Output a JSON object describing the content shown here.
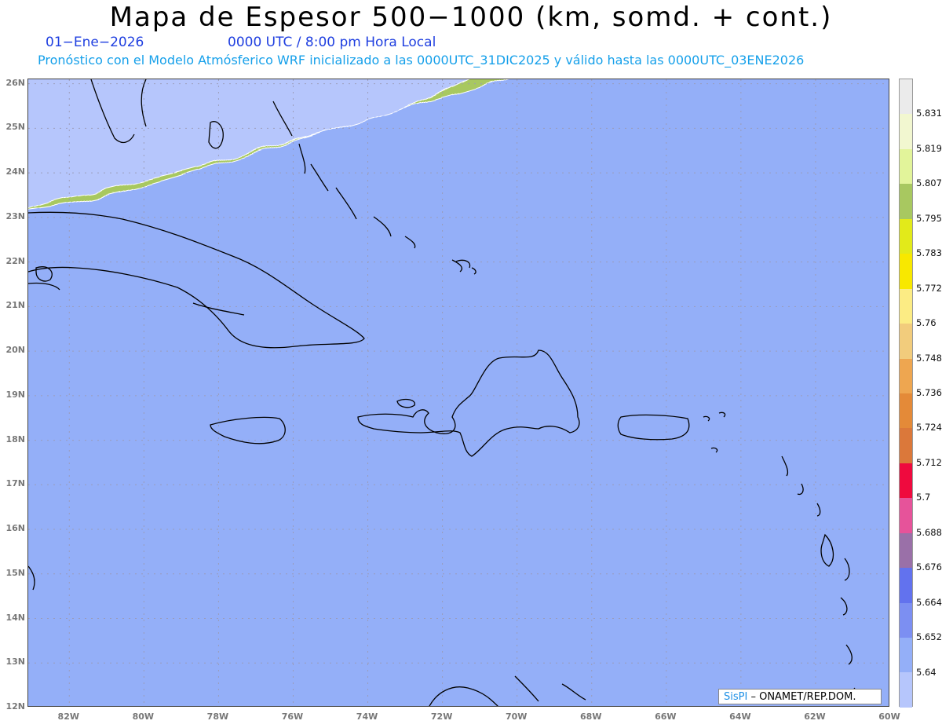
{
  "title": "Mapa de Espesor 500−1000 (km, somd. + cont.)",
  "date_label": "01−Ene−2026",
  "time_label": "0000 UTC / 8:00 pm Hora Local",
  "forecast_note": "Pronóstico con el Modelo Atmósferico WRF inicializado a las 0000UTC_31DIC2025 y válido hasta las  0000UTC_03ENE2026",
  "credit": {
    "brand": "SisPI",
    "text": "– ONAMET/REP.DOM."
  },
  "lat_labels": [
    "26N",
    "25N",
    "24N",
    "23N",
    "22N",
    "21N",
    "20N",
    "19N",
    "18N",
    "17N",
    "16N",
    "15N",
    "14N",
    "13N",
    "12N"
  ],
  "lon_labels": [
    "82W",
    "80W",
    "78W",
    "76W",
    "74W",
    "72W",
    "70W",
    "68W",
    "66W",
    "64W",
    "62W",
    "60W"
  ],
  "colorbar": {
    "labels": [
      "5.831",
      "5.819",
      "5.807",
      "5.795",
      "5.783",
      "5.772",
      "5.76",
      "5.748",
      "5.736",
      "5.724",
      "5.712",
      "5.7",
      "5.688",
      "5.676",
      "5.664",
      "5.652",
      "5.64"
    ],
    "colors": [
      "#ebebeb",
      "#f2f7d0",
      "#e2f49a",
      "#a8c860",
      "#e2ea1a",
      "#f8e800",
      "#fcec84",
      "#f2cc7c",
      "#eea650",
      "#e48a38",
      "#db783a",
      "#ef0a3e",
      "#e6539a",
      "#9a70a8",
      "#6272ee",
      "#7c8ff2",
      "#94aff8",
      "#b6c6fc"
    ]
  },
  "map": {
    "projection": "lat-lon",
    "lon_range": [
      "83.1W",
      "60W"
    ],
    "lat_range": [
      "12N",
      "26.1N"
    ],
    "gridlines": true,
    "land_outlines": true
  }
}
